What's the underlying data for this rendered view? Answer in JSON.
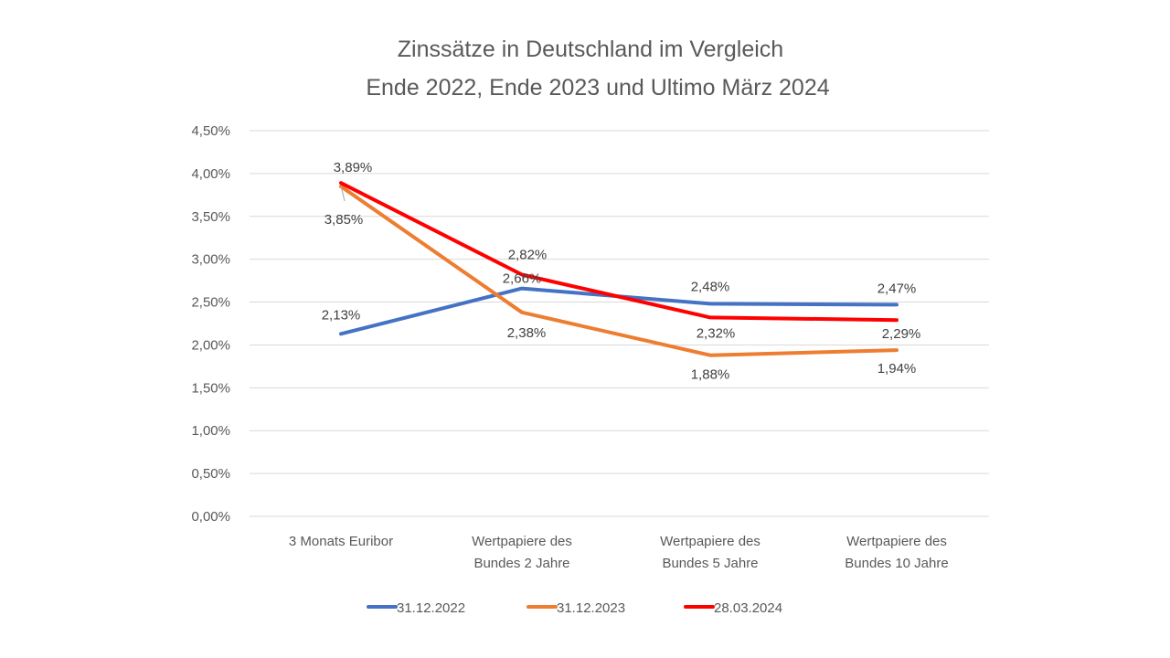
{
  "chart_data": {
    "type": "line",
    "title": [
      "Zinssätze in Deutschland im Vergleich",
      "Ende 2022, Ende 2023 und Ultimo März 2024"
    ],
    "xlabel": "",
    "ylabel": "",
    "categories": [
      [
        "3 Monats Euribor"
      ],
      [
        "Wertpapiere des",
        "Bundes 2 Jahre"
      ],
      [
        "Wertpapiere des",
        "Bundes 5 Jahre"
      ],
      [
        "Wertpapiere des",
        "Bundes 10 Jahre"
      ]
    ],
    "ylim": [
      0,
      4.5
    ],
    "yticks": [
      0,
      0.5,
      1,
      1.5,
      2,
      2.5,
      3,
      3.5,
      4,
      4.5
    ],
    "ytick_labels": [
      "0,00%",
      "0,50%",
      "1,00%",
      "1,50%",
      "2,00%",
      "2,50%",
      "3,00%",
      "3,50%",
      "4,00%",
      "4,50%"
    ],
    "grid": true,
    "legend_position": "bottom",
    "series": [
      {
        "name": "31.12.2022",
        "color": "#4472C4",
        "values": [
          2.13,
          2.66,
          2.48,
          2.47
        ],
        "labels": [
          "2,13%",
          "2,66%",
          "2,48%",
          "2,47%"
        ]
      },
      {
        "name": "31.12.2023",
        "color": "#ED7D31",
        "values": [
          3.85,
          2.38,
          1.88,
          1.94
        ],
        "labels": [
          "3,85%",
          "2,38%",
          "1,88%",
          "1,94%"
        ]
      },
      {
        "name": "28.03.2024",
        "color": "#FF0000",
        "values": [
          3.89,
          2.82,
          2.32,
          2.29
        ],
        "labels": [
          "3,89%",
          "2,82%",
          "2,32%",
          "2,29%"
        ]
      }
    ]
  }
}
